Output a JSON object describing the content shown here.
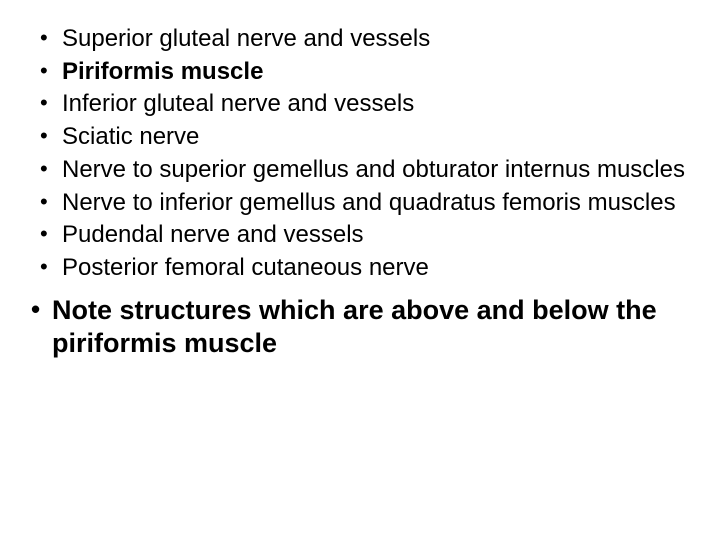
{
  "slide": {
    "background": "#ffffff",
    "text_color": "#000000",
    "bullet_color": "#000000",
    "body_fontsize": 24,
    "note_fontsize": 27,
    "font_family": "Arial",
    "items": [
      {
        "text": "Superior gluteal nerve and vessels",
        "bold": false
      },
      {
        "text": "Piriformis muscle",
        "bold": true
      },
      {
        "text": "Inferior gluteal nerve and vessels",
        "bold": false
      },
      {
        "text": "Sciatic nerve",
        "bold": false
      },
      {
        "text": "Nerve to superior gemellus and obturator internus muscles",
        "bold": false
      },
      {
        "text": "Nerve to inferior gemellus and quadratus femoris muscles",
        "bold": false
      },
      {
        "text": "Pudendal nerve and vessels",
        "bold": false
      },
      {
        "text": "Posterior femoral cutaneous nerve",
        "bold": false
      }
    ],
    "note": "Note structures which are above and below the piriformis muscle"
  }
}
